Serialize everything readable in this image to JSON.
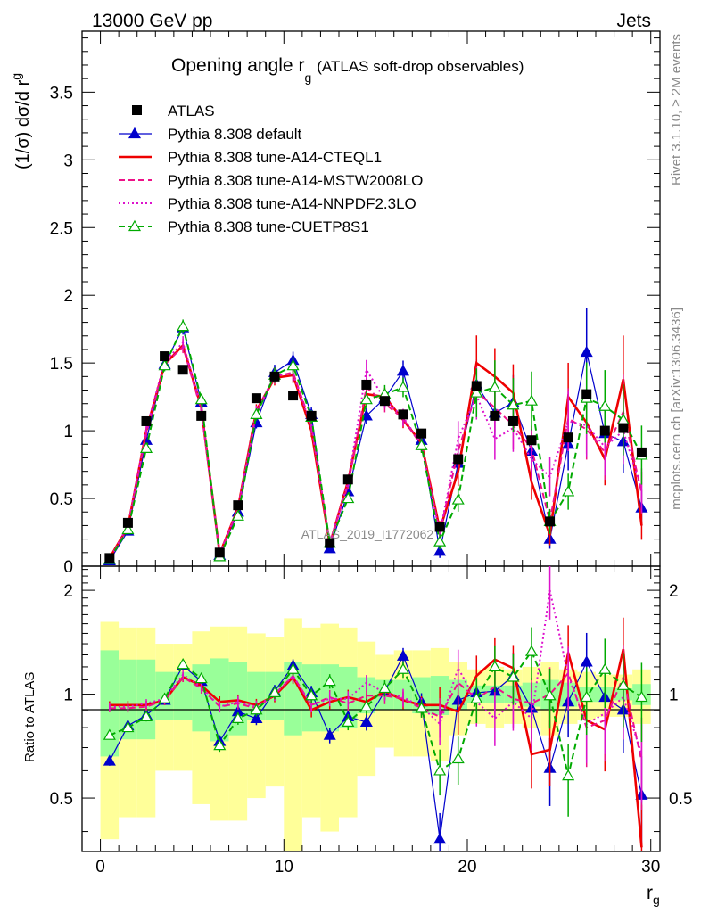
{
  "header": {
    "energy": "13000 GeV pp",
    "process": "Jets"
  },
  "side_labels": {
    "rivet": "Rivet 3.1.10, ≥ 2M events",
    "site": "mcplots.cern.ch [arXiv:1306.3436]"
  },
  "watermark": "ATLAS_2019_I1772062",
  "chart_data": {
    "type": "line",
    "title": "Opening angle r",
    "title_sub": "g",
    "title_note": "(ATLAS soft-drop observables)",
    "ylabel": "(1/σ) dσ/d r",
    "ylabel_sub": "g",
    "xlabel": "r",
    "xlabel_sub": "g",
    "ratio_ylabel": "Ratio to ATLAS",
    "xlim": [
      -1,
      30.5
    ],
    "ylim": [
      0,
      3.95
    ],
    "ratio_ylim": [
      0.35,
      2.35
    ],
    "x_ticks": [
      0,
      10,
      20,
      30
    ],
    "y_ticks": [
      "0",
      "0.5",
      "1",
      "1.5",
      "2",
      "2.5",
      "3",
      "3.5"
    ],
    "ratio_ticks": [
      "0.5",
      "1",
      "2"
    ],
    "legend_position": "top-left",
    "x": [
      0.5,
      1.5,
      2.5,
      3.5,
      4.5,
      5.5,
      6.5,
      7.5,
      8.5,
      9.5,
      10.5,
      11.5,
      12.5,
      13.5,
      14.5,
      15.5,
      16.5,
      17.5,
      18.5,
      19.5,
      20.5,
      21.5,
      22.5,
      23.5,
      24.5,
      25.5,
      26.5,
      27.5,
      28.5,
      29.5
    ],
    "data": {
      "name": "ATLAS",
      "values": [
        0.06,
        0.32,
        1.07,
        1.55,
        1.45,
        1.11,
        0.1,
        0.45,
        1.24,
        1.4,
        1.26,
        1.11,
        0.17,
        0.64,
        1.34,
        1.22,
        1.12,
        0.98,
        0.29,
        0.79,
        1.33,
        1.11,
        1.07,
        0.93,
        0.33,
        0.95,
        1.27,
        1.0,
        1.02,
        0.84
      ]
    },
    "series": [
      {
        "name": "Pythia 8.308 default",
        "color": "#0000cc",
        "dash": "solid",
        "marker": "triangle",
        "values": [
          0.04,
          0.26,
          0.93,
          1.49,
          1.76,
          1.21,
          0.08,
          0.4,
          1.06,
          1.43,
          1.52,
          1.12,
          0.13,
          0.55,
          1.11,
          1.24,
          1.44,
          0.93,
          0.11,
          0.76,
          1.34,
          1.13,
          1.21,
          0.85,
          0.2,
          0.9,
          1.58,
          0.98,
          0.92,
          0.43
        ],
        "ratio": [
          0.64,
          0.81,
          0.87,
          0.96,
          1.21,
          1.09,
          0.73,
          0.89,
          0.85,
          1.02,
          1.21,
          1.01,
          0.76,
          0.86,
          0.83,
          1.02,
          1.29,
          0.95,
          0.38,
          0.96,
          1.01,
          1.02,
          1.13,
          0.91,
          0.61,
          0.95,
          1.24,
          0.98,
          0.9,
          0.51
        ]
      },
      {
        "name": "Pythia 8.308 tune-A14-CTEQL1",
        "color": "#ee0000",
        "dash": "solid",
        "marker": "none",
        "values": [
          0.06,
          0.29,
          1.0,
          1.49,
          1.63,
          1.17,
          0.09,
          0.43,
          1.15,
          1.39,
          1.41,
          1.0,
          0.16,
          0.63,
          1.27,
          1.25,
          1.08,
          0.91,
          0.27,
          0.7,
          1.5,
          1.4,
          1.28,
          0.62,
          0.23,
          1.25,
          1.06,
          0.79,
          1.38,
          0.3
        ],
        "ratio": [
          0.93,
          0.93,
          0.93,
          0.96,
          1.12,
          1.06,
          0.95,
          0.96,
          0.93,
          0.99,
          1.12,
          0.9,
          0.95,
          0.98,
          0.95,
          1.02,
          0.96,
          0.93,
          0.93,
          0.89,
          1.13,
          1.26,
          1.19,
          0.67,
          0.69,
          1.32,
          0.84,
          0.79,
          1.35,
          0.36
        ]
      },
      {
        "name": "Pythia 8.308 tune-A14-MSTW2008LO",
        "color": "#ee1188",
        "dash": "dashed",
        "marker": "none",
        "values": [
          0.05,
          0.29,
          0.98,
          1.49,
          1.62,
          1.15,
          0.09,
          0.42,
          1.13,
          1.4,
          1.43,
          1.04,
          0.17,
          0.6,
          1.32,
          1.2,
          1.09,
          0.89,
          0.25,
          0.85,
          1.29,
          1.17,
          1.04,
          0.87,
          0.33,
          1.09,
          1.01,
          0.84,
          1.14,
          0.54
        ],
        "ratio": [
          0.91,
          0.91,
          0.92,
          0.96,
          1.12,
          1.04,
          0.92,
          0.94,
          0.91,
          1.0,
          1.13,
          0.93,
          0.98,
          0.94,
          0.99,
          0.99,
          0.97,
          0.91,
          0.86,
          1.08,
          0.97,
          1.05,
          0.97,
          0.94,
          1.0,
          1.15,
          0.8,
          0.84,
          1.12,
          0.64
        ]
      },
      {
        "name": "Pythia 8.308 tune-A14-NNPDF2.3LO",
        "color": "#dd11cc",
        "dash": "dotted",
        "marker": "none",
        "values": [
          0.05,
          0.3,
          1.01,
          1.51,
          1.65,
          1.17,
          0.09,
          0.43,
          1.14,
          1.41,
          1.42,
          1.03,
          0.17,
          0.62,
          1.45,
          1.23,
          1.1,
          0.9,
          0.24,
          0.94,
          1.26,
          0.94,
          1.02,
          0.79,
          0.66,
          1.07,
          1.04,
          0.88,
          1.0,
          0.56
        ],
        "ratio": [
          0.92,
          0.92,
          0.94,
          0.97,
          1.14,
          1.05,
          0.92,
          0.95,
          0.92,
          1.0,
          1.13,
          0.93,
          0.97,
          0.97,
          1.08,
          1.01,
          0.98,
          0.92,
          0.82,
          1.19,
          0.95,
          0.85,
          0.95,
          0.85,
          2.0,
          1.13,
          0.82,
          0.88,
          0.98,
          0.67
        ]
      },
      {
        "name": "Pythia 8.308 tune-CUETP8S1",
        "color": "#00aa00",
        "dash": "dashed",
        "marker": "open-triangle",
        "values": [
          0.05,
          0.27,
          0.87,
          1.48,
          1.77,
          1.23,
          0.07,
          0.37,
          1.12,
          1.41,
          1.48,
          1.1,
          0.17,
          0.5,
          1.23,
          1.27,
          1.32,
          0.89,
          0.18,
          0.49,
          1.28,
          1.32,
          1.19,
          1.22,
          0.33,
          0.55,
          1.24,
          1.18,
          1.08,
          0.82
        ],
        "ratio": [
          0.76,
          0.8,
          0.86,
          0.97,
          1.22,
          1.11,
          0.71,
          0.85,
          0.9,
          1.01,
          1.18,
          0.99,
          1.09,
          0.83,
          0.92,
          1.04,
          1.18,
          0.91,
          0.6,
          0.65,
          0.97,
          1.2,
          1.12,
          1.33,
          0.99,
          0.58,
          0.98,
          1.18,
          1.06,
          0.98
        ]
      }
    ],
    "bands": {
      "inner_halfwidth": [
        0.34,
        0.26,
        0.26,
        0.16,
        0.16,
        0.22,
        0.27,
        0.24,
        0.16,
        0.16,
        0.24,
        0.22,
        0.22,
        0.2,
        0.12,
        0.1,
        0.1,
        0.12,
        0.13,
        0.1,
        0.06,
        0.06,
        0.06,
        0.08,
        0.1,
        0.08,
        0.05,
        0.05,
        0.04,
        0.07
      ],
      "outer_halfwidth": [
        0.62,
        0.56,
        0.56,
        0.4,
        0.4,
        0.52,
        0.57,
        0.57,
        0.5,
        0.46,
        0.66,
        0.56,
        0.6,
        0.56,
        0.42,
        0.3,
        0.34,
        0.34,
        0.36,
        0.24,
        0.18,
        0.2,
        0.18,
        0.2,
        0.24,
        0.18,
        0.16,
        0.14,
        0.14,
        0.18
      ]
    }
  }
}
